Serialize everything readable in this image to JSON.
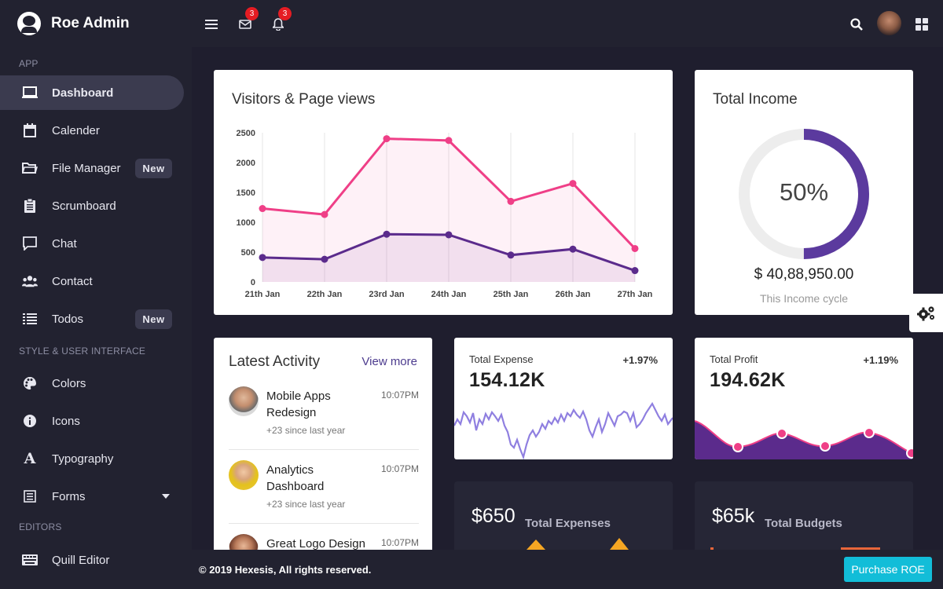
{
  "brand": {
    "name": "Roe Admin"
  },
  "sidebar": {
    "sections": [
      {
        "label": "APP"
      },
      {
        "label": "STYLE & USER INTERFACE"
      },
      {
        "label": "EDITORS"
      }
    ],
    "items": [
      {
        "label": "Dashboard",
        "icon": "laptop-icon",
        "active": true
      },
      {
        "label": "Calender",
        "icon": "calendar-icon"
      },
      {
        "label": "File Manager",
        "icon": "folder-icon",
        "badge": "New"
      },
      {
        "label": "Scrumboard",
        "icon": "clipboard-icon"
      },
      {
        "label": "Chat",
        "icon": "chat-icon"
      },
      {
        "label": "Contact",
        "icon": "users-icon"
      },
      {
        "label": "Todos",
        "icon": "list-icon",
        "badge": "New"
      },
      {
        "label": "Colors",
        "icon": "palette-icon"
      },
      {
        "label": "Icons",
        "icon": "info-icon"
      },
      {
        "label": "Typography",
        "icon": "typography-icon"
      },
      {
        "label": "Forms",
        "icon": "form-icon"
      },
      {
        "label": "Quill Editor",
        "icon": "keyboard-icon"
      }
    ]
  },
  "topbar": {
    "mail_count": "3",
    "bell_count": "3"
  },
  "visitors": {
    "title": "Visitors & Page views"
  },
  "chart_data": {
    "type": "area",
    "title": "Visitors & Page views",
    "categories": [
      "21th Jan",
      "22th Jan",
      "23rd Jan",
      "24th Jan",
      "25th Jan",
      "26th Jan",
      "27th Jan"
    ],
    "ylim": [
      0,
      2500
    ],
    "yticks": [
      "0",
      "500",
      "1000",
      "1500",
      "2000",
      "2500"
    ],
    "series": [
      {
        "values": [
          1230,
          1130,
          2400,
          2370,
          1350,
          1650,
          560
        ],
        "color": "#ef3f87"
      },
      {
        "values": [
          410,
          380,
          800,
          790,
          450,
          550,
          190
        ],
        "color": "#5b2b8c"
      }
    ]
  },
  "income": {
    "title": "Total Income",
    "percent_label": "50%",
    "percent": 0.5,
    "amount": "$ 40,88,950.00",
    "caption": "This Income cycle"
  },
  "activity": {
    "title": "Latest Activity",
    "view_more": "View more",
    "items": [
      {
        "title": "Mobile Apps Redesign",
        "time": "10:07PM",
        "sub": "+23 since last year"
      },
      {
        "title": "Analytics Dashboard",
        "time": "10:07PM",
        "sub": "+23 since last year"
      },
      {
        "title": "Great Logo Design",
        "time": "10:07PM"
      }
    ]
  },
  "expense": {
    "label": "Total Expense",
    "value": "154.12K",
    "change": "+1.97%"
  },
  "profit": {
    "label": "Total Profit",
    "value": "194.62K",
    "change": "+1.19%"
  },
  "expenses_dark": {
    "value": "$650",
    "label": "Total Expenses"
  },
  "budgets_dark": {
    "value": "$65k",
    "label": "Total Budgets"
  },
  "footer": {
    "copyright": "© 2019 Hexesis, All rights reserved.",
    "purchase": "Purchase ROE"
  },
  "colors": {
    "accent_purple": "#5b3a9e",
    "accent_pink": "#ef3f87",
    "cyan": "#12bdd8"
  }
}
